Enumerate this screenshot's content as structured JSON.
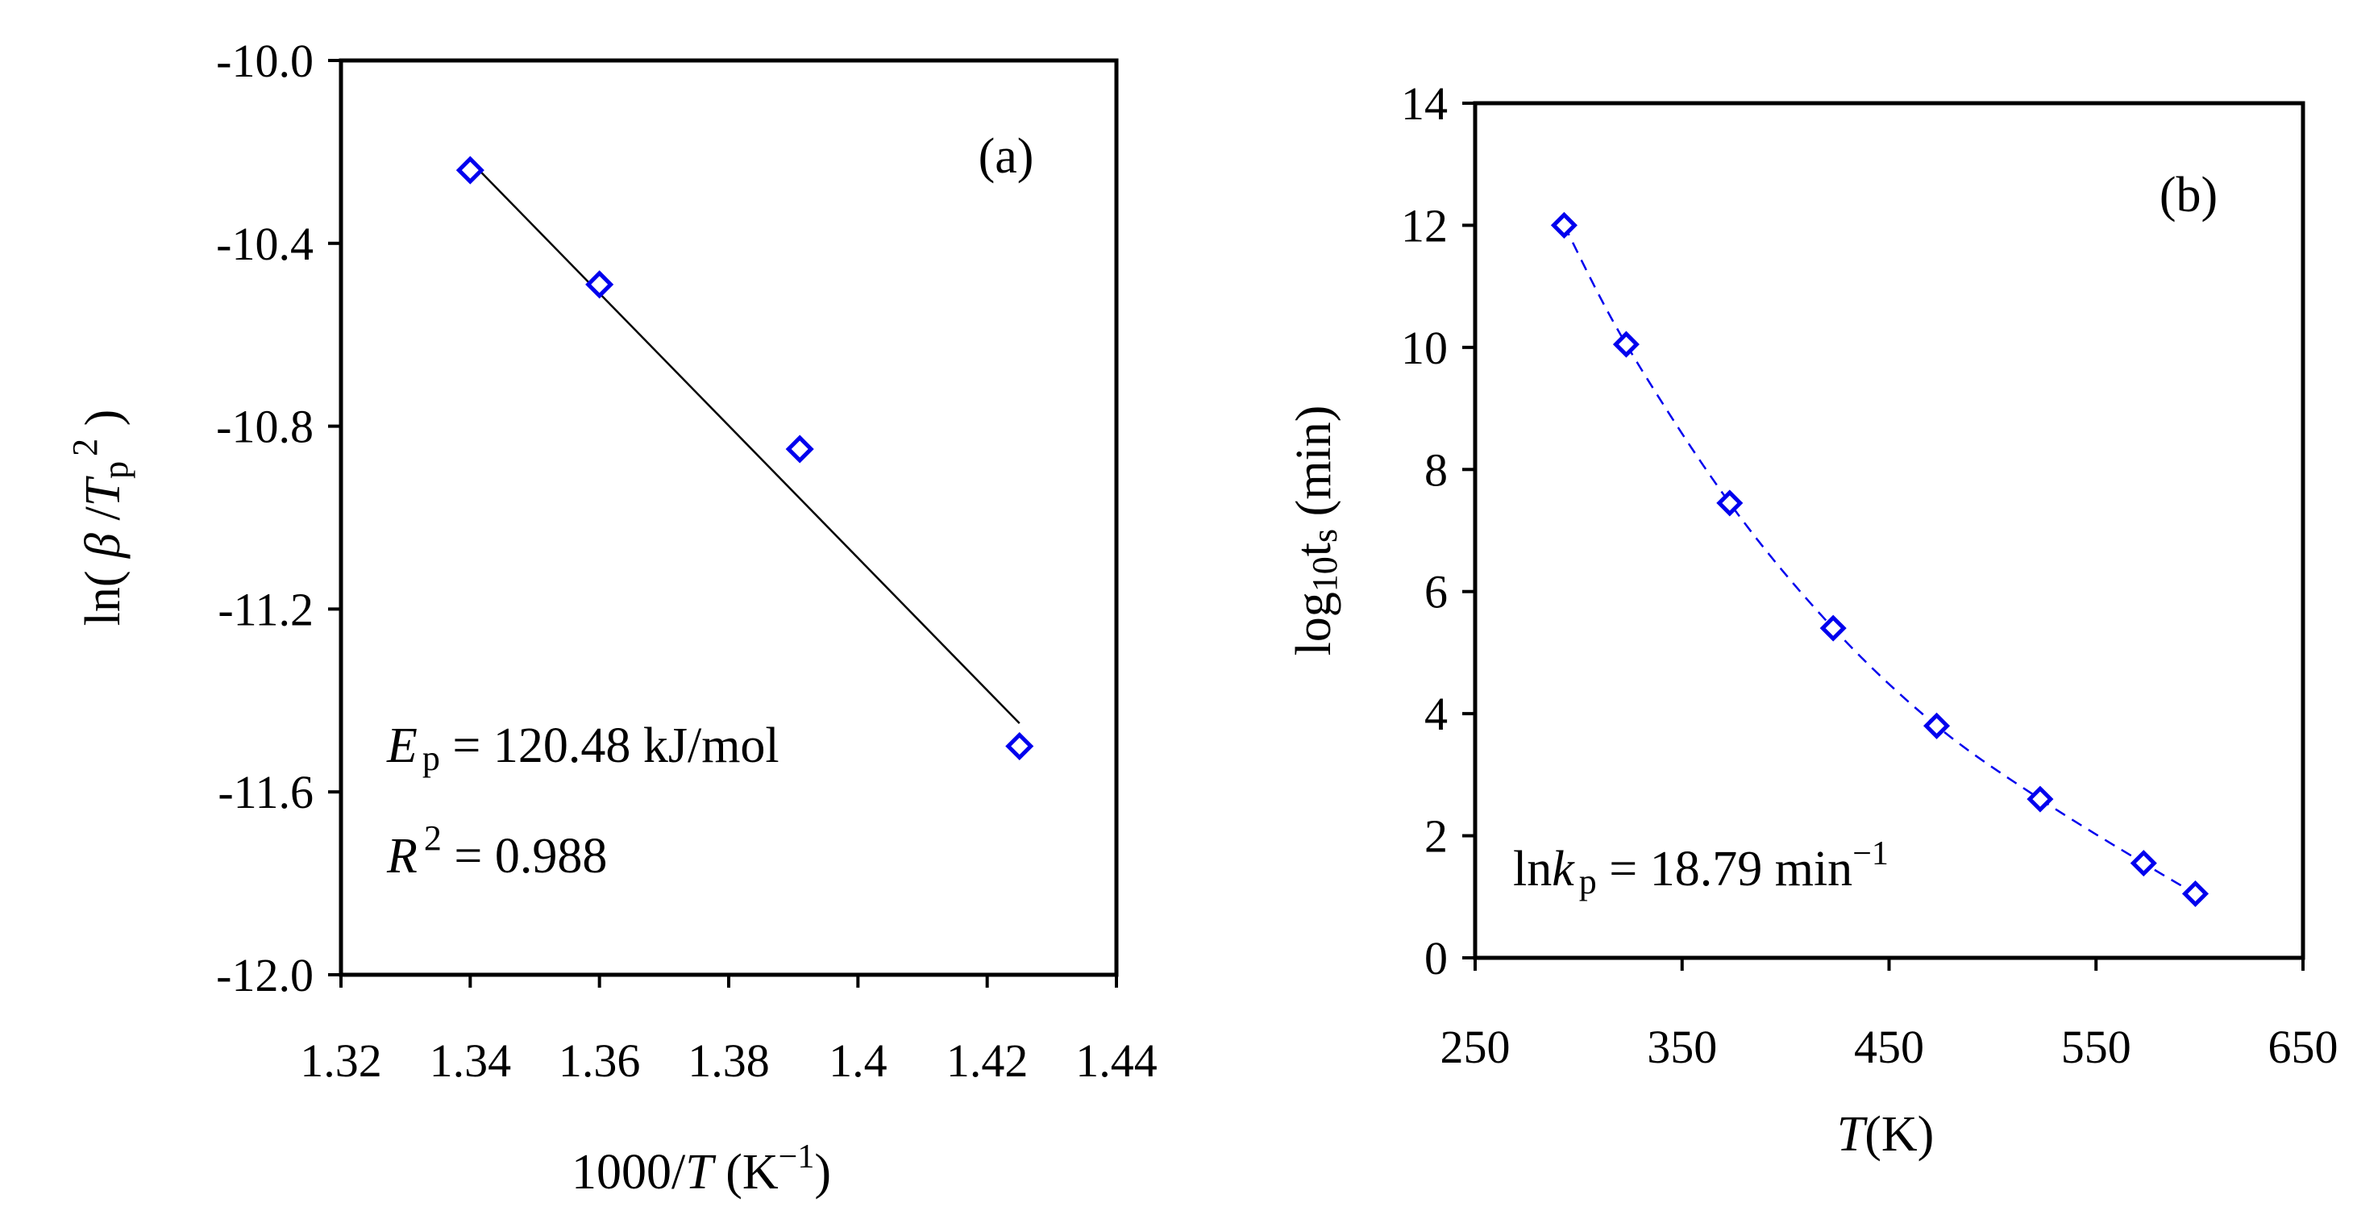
{
  "chart_data": [
    {
      "type": "scatter",
      "panel_label": "(a)",
      "xlabel": "1000/T (K⁻¹)",
      "xlabel_parts": {
        "pre": "1000/",
        "var": "T",
        "unit_open": " (K",
        "sup": "−1",
        "unit_close": ")"
      },
      "ylabel": "ln( β /T p 2 )",
      "ylabel_parts": {
        "pre": "ln( ",
        "beta": "β",
        "slash": " /",
        "var": "T",
        "sub": "p",
        "sup": "2",
        "close": " )"
      },
      "xlim": [
        1.32,
        1.44
      ],
      "ylim": [
        -12.0,
        -10.0
      ],
      "xticks": [
        1.32,
        1.34,
        1.36,
        1.38,
        1.4,
        1.42,
        1.44
      ],
      "xtick_labels": [
        "1.32",
        "1.34",
        "1.36",
        "1.38",
        "1.4",
        "1.42",
        "1.44"
      ],
      "yticks": [
        -10.0,
        -10.4,
        -10.8,
        -11.2,
        -11.6,
        -12.0
      ],
      "ytick_labels": [
        "-10.0",
        "-10.4",
        "-10.8",
        "-11.2",
        "-11.6",
        "-12.0"
      ],
      "series": [
        {
          "name": "data",
          "marker": "diamond",
          "color": "#0000ee",
          "x": [
            1.34,
            1.36,
            1.391,
            1.425
          ],
          "y": [
            -10.24,
            -10.49,
            -10.85,
            -11.5
          ]
        }
      ],
      "fit_line": {
        "x": [
          1.34,
          1.425
        ],
        "y": [
          -10.22,
          -11.45
        ],
        "color": "#000000"
      },
      "annotations": {
        "ep": {
          "var": "E",
          "sub": "p",
          "text": " = 120.48 kJ/mol"
        },
        "r2": {
          "var": "R",
          "sup": "2",
          "text": " = 0.988"
        }
      }
    },
    {
      "type": "scatter",
      "panel_label": "(b)",
      "xlabel": "T(K)",
      "xlabel_parts": {
        "var": "T",
        "unit": "(K)"
      },
      "ylabel": "log10ts (min)",
      "ylabel_parts": {
        "pre": "log",
        "sub10": "10",
        "t": "t",
        "subs": "s",
        "unit": " (min)"
      },
      "xlim": [
        250,
        650
      ],
      "ylim": [
        0,
        14
      ],
      "xticks": [
        250,
        350,
        450,
        550,
        650
      ],
      "xtick_labels": [
        "250",
        "350",
        "450",
        "550",
        "650"
      ],
      "yticks": [
        0,
        2,
        4,
        6,
        8,
        10,
        12,
        14
      ],
      "ytick_labels": [
        "0",
        "2",
        "4",
        "6",
        "8",
        "10",
        "12",
        "14"
      ],
      "series": [
        {
          "name": "data",
          "marker": "diamond",
          "color": "#0000ee",
          "line": "dashed",
          "x": [
            293,
            323,
            373,
            423,
            473,
            523,
            573,
            598
          ],
          "y": [
            12.0,
            10.05,
            7.45,
            5.4,
            3.8,
            2.6,
            1.55,
            1.05
          ]
        }
      ],
      "annotations": {
        "lnk": {
          "pre": "ln",
          "var": "k",
          "sub": "p",
          "text": " = 18.79 min",
          "sup": "−1"
        }
      }
    }
  ]
}
